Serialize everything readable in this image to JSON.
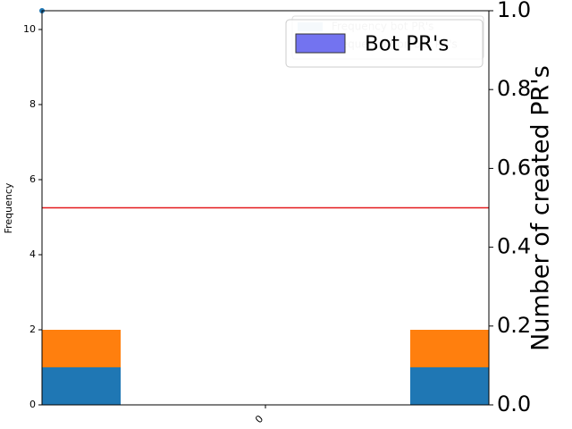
{
  "chart_data": {
    "type": "histogram",
    "ylabel": "Frequency",
    "y2label": "Number of created PR's",
    "xlim": [
      -0.5,
      0.5
    ],
    "xticks": [
      0
    ],
    "ylim": [
      0,
      10.5
    ],
    "yticks": [
      0,
      2,
      4,
      6,
      8,
      10
    ],
    "y2lim": [
      0,
      1
    ],
    "y2ticks": [
      {
        "value": 0,
        "label": "0.0"
      },
      {
        "value": 0.2,
        "label": "0.2"
      },
      {
        "value": 0.4,
        "label": "0.4"
      },
      {
        "value": 0.6,
        "label": "0.6"
      },
      {
        "value": 0.8,
        "label": "0.8"
      },
      {
        "value": 1,
        "label": "1.0"
      }
    ],
    "bins": [
      -0.5,
      -0.324,
      0.324,
      0.5
    ],
    "series": [
      {
        "name": "Frequency bot PR's",
        "color": "#1f77b4",
        "values": [
          1,
          0,
          1
        ]
      },
      {
        "name": "Frequency non bot PR's",
        "color": "#ff7f0e",
        "values": [
          1,
          0,
          1
        ]
      }
    ],
    "points": {
      "color": "#1f77b4",
      "x": [
        -0.5
      ],
      "values": [
        10.5
      ]
    },
    "hline": {
      "name": "Bot PR's",
      "value": 5.25,
      "color": "#e41a1c",
      "legend_color": "#7373f0"
    },
    "stacked": true
  }
}
